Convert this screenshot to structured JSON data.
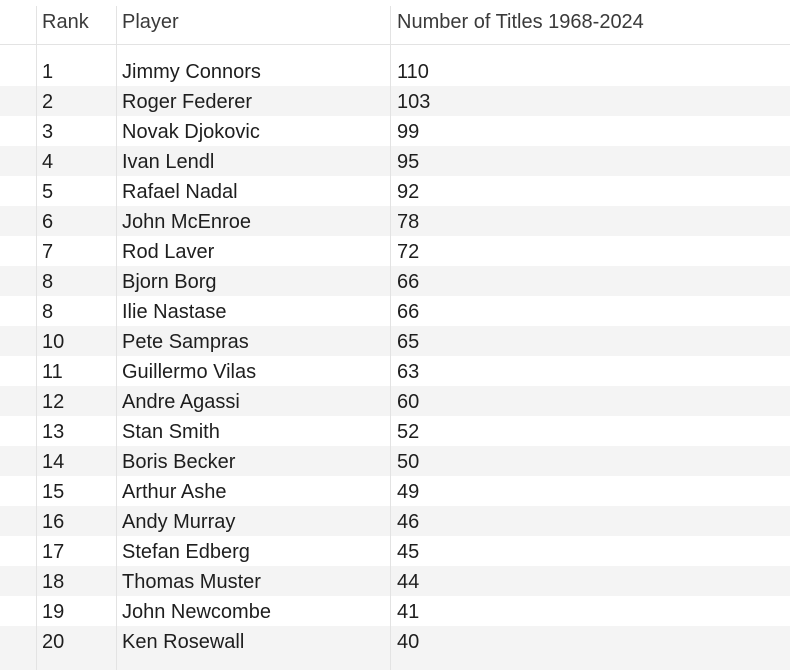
{
  "table": {
    "columns": [
      "Rank",
      "Player",
      "Number of Titles 1968-2024"
    ],
    "rows": [
      {
        "rank": "1",
        "player": "Jimmy Connors",
        "titles": "110"
      },
      {
        "rank": "2",
        "player": "Roger Federer",
        "titles": "103"
      },
      {
        "rank": "3",
        "player": "Novak Djokovic",
        "titles": "99"
      },
      {
        "rank": "4",
        "player": "Ivan Lendl",
        "titles": "95"
      },
      {
        "rank": "5",
        "player": "Rafael Nadal",
        "titles": "92"
      },
      {
        "rank": "6",
        "player": "John McEnroe",
        "titles": "78"
      },
      {
        "rank": "7",
        "player": "Rod Laver",
        "titles": "72"
      },
      {
        "rank": "8",
        "player": "Bjorn Borg",
        "titles": "66"
      },
      {
        "rank": "8",
        "player": "Ilie Nastase",
        "titles": "66"
      },
      {
        "rank": "10",
        "player": "Pete Sampras",
        "titles": "65"
      },
      {
        "rank": "11",
        "player": "Guillermo Vilas",
        "titles": "63"
      },
      {
        "rank": "12",
        "player": "Andre Agassi",
        "titles": "60"
      },
      {
        "rank": "13",
        "player": "Stan Smith",
        "titles": "52"
      },
      {
        "rank": "14",
        "player": "Boris Becker",
        "titles": "50"
      },
      {
        "rank": "15",
        "player": "Arthur Ashe",
        "titles": "49"
      },
      {
        "rank": "16",
        "player": "Andy Murray",
        "titles": "46"
      },
      {
        "rank": "17",
        "player": "Stefan Edberg",
        "titles": "45"
      },
      {
        "rank": "18",
        "player": "Thomas Muster",
        "titles": "44"
      },
      {
        "rank": "19",
        "player": "John Newcombe",
        "titles": "41"
      },
      {
        "rank": "20",
        "player": "Ken Rosewall",
        "titles": "40"
      }
    ]
  }
}
